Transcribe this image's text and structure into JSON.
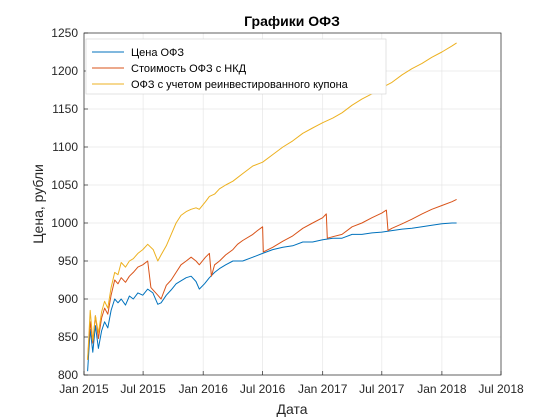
{
  "chart_data": {
    "type": "line",
    "title": "Графики ОФЗ",
    "xlabel": "Дата",
    "ylabel": "Цена, рубли",
    "grid": true,
    "legend_position": "top-left",
    "ylim": [
      800,
      1250
    ],
    "xlim": [
      "2015-01-01",
      "2018-07-01"
    ],
    "x_ticks": [
      {
        "date": "2015-01-01",
        "label": "Jan 2015"
      },
      {
        "date": "2015-07-01",
        "label": "Jul 2015"
      },
      {
        "date": "2016-01-01",
        "label": "Jan 2016"
      },
      {
        "date": "2016-07-01",
        "label": "Jul 2016"
      },
      {
        "date": "2017-01-01",
        "label": "Jan 2017"
      },
      {
        "date": "2017-07-01",
        "label": "Jul 2017"
      },
      {
        "date": "2018-01-01",
        "label": "Jan 2018"
      },
      {
        "date": "2018-07-01",
        "label": "Jul 2018"
      }
    ],
    "y_ticks": [
      800,
      850,
      900,
      950,
      1000,
      1050,
      1100,
      1150,
      1200,
      1250
    ],
    "series": [
      {
        "name": "Цена ОФЗ",
        "color": "#0072BD",
        "points": [
          [
            "2015-01-12",
            805
          ],
          [
            "2015-01-20",
            860
          ],
          [
            "2015-01-28",
            830
          ],
          [
            "2015-02-05",
            865
          ],
          [
            "2015-02-14",
            835
          ],
          [
            "2015-02-24",
            858
          ],
          [
            "2015-03-05",
            870
          ],
          [
            "2015-03-15",
            862
          ],
          [
            "2015-03-25",
            885
          ],
          [
            "2015-04-05",
            900
          ],
          [
            "2015-04-15",
            895
          ],
          [
            "2015-04-25",
            900
          ],
          [
            "2015-05-08",
            892
          ],
          [
            "2015-05-20",
            904
          ],
          [
            "2015-06-01",
            900
          ],
          [
            "2015-06-15",
            908
          ],
          [
            "2015-06-30",
            905
          ],
          [
            "2015-07-15",
            913
          ],
          [
            "2015-07-31",
            908
          ],
          [
            "2015-08-15",
            893
          ],
          [
            "2015-08-25",
            895
          ],
          [
            "2015-09-10",
            905
          ],
          [
            "2015-09-25",
            912
          ],
          [
            "2015-10-10",
            920
          ],
          [
            "2015-10-25",
            924
          ],
          [
            "2015-11-10",
            928
          ],
          [
            "2015-11-25",
            930
          ],
          [
            "2015-12-10",
            923
          ],
          [
            "2015-12-20",
            913
          ],
          [
            "2016-01-05",
            920
          ],
          [
            "2016-01-20",
            928
          ],
          [
            "2016-02-05",
            935
          ],
          [
            "2016-02-20",
            940
          ],
          [
            "2016-03-10",
            945
          ],
          [
            "2016-04-01",
            950
          ],
          [
            "2016-05-01",
            950
          ],
          [
            "2016-06-01",
            955
          ],
          [
            "2016-07-01",
            960
          ],
          [
            "2016-08-01",
            965
          ],
          [
            "2016-09-01",
            968
          ],
          [
            "2016-10-01",
            970
          ],
          [
            "2016-11-01",
            975
          ],
          [
            "2016-12-01",
            975
          ],
          [
            "2017-01-01",
            978
          ],
          [
            "2017-02-01",
            980
          ],
          [
            "2017-03-01",
            980
          ],
          [
            "2017-04-01",
            985
          ],
          [
            "2017-05-01",
            985
          ],
          [
            "2017-06-01",
            987
          ],
          [
            "2017-07-01",
            988
          ],
          [
            "2017-08-01",
            990
          ],
          [
            "2017-09-01",
            992
          ],
          [
            "2017-10-01",
            993
          ],
          [
            "2017-11-01",
            995
          ],
          [
            "2017-12-01",
            997
          ],
          [
            "2018-01-01",
            999
          ],
          [
            "2018-02-01",
            1000
          ],
          [
            "2018-02-15",
            1000
          ]
        ]
      },
      {
        "name": "Стоимость ОФЗ с НКД",
        "color": "#D95319",
        "points": [
          [
            "2015-01-12",
            820
          ],
          [
            "2015-01-20",
            870
          ],
          [
            "2015-01-28",
            842
          ],
          [
            "2015-02-05",
            878
          ],
          [
            "2015-02-14",
            848
          ],
          [
            "2015-02-24",
            875
          ],
          [
            "2015-03-05",
            888
          ],
          [
            "2015-03-15",
            880
          ],
          [
            "2015-03-25",
            905
          ],
          [
            "2015-04-05",
            925
          ],
          [
            "2015-04-15",
            920
          ],
          [
            "2015-04-25",
            928
          ],
          [
            "2015-05-08",
            922
          ],
          [
            "2015-05-20",
            930
          ],
          [
            "2015-06-01",
            935
          ],
          [
            "2015-06-15",
            942
          ],
          [
            "2015-06-30",
            945
          ],
          [
            "2015-07-15",
            950
          ],
          [
            "2015-07-25",
            915
          ],
          [
            "2015-08-15",
            905
          ],
          [
            "2015-08-25",
            900
          ],
          [
            "2015-09-10",
            918
          ],
          [
            "2015-09-25",
            925
          ],
          [
            "2015-10-10",
            935
          ],
          [
            "2015-10-25",
            945
          ],
          [
            "2015-11-10",
            950
          ],
          [
            "2015-11-25",
            955
          ],
          [
            "2015-12-10",
            950
          ],
          [
            "2015-12-20",
            945
          ],
          [
            "2016-01-08",
            955
          ],
          [
            "2016-01-20",
            960
          ],
          [
            "2016-01-26",
            930
          ],
          [
            "2016-02-05",
            945
          ],
          [
            "2016-02-20",
            950
          ],
          [
            "2016-03-10",
            958
          ],
          [
            "2016-04-01",
            965
          ],
          [
            "2016-04-15",
            972
          ],
          [
            "2016-05-01",
            977
          ],
          [
            "2016-06-01",
            985
          ],
          [
            "2016-06-15",
            990
          ],
          [
            "2016-07-01",
            995
          ],
          [
            "2016-07-03",
            962
          ],
          [
            "2016-08-01",
            968
          ],
          [
            "2016-09-01",
            976
          ],
          [
            "2016-10-01",
            983
          ],
          [
            "2016-11-01",
            993
          ],
          [
            "2016-12-01",
            1000
          ],
          [
            "2017-01-01",
            1007
          ],
          [
            "2017-01-12",
            1012
          ],
          [
            "2017-01-15",
            980
          ],
          [
            "2017-02-01",
            982
          ],
          [
            "2017-03-01",
            985
          ],
          [
            "2017-04-01",
            995
          ],
          [
            "2017-05-01",
            1000
          ],
          [
            "2017-06-01",
            1007
          ],
          [
            "2017-07-01",
            1013
          ],
          [
            "2017-07-15",
            1017
          ],
          [
            "2017-07-20",
            990
          ],
          [
            "2017-08-01",
            993
          ],
          [
            "2017-09-01",
            999
          ],
          [
            "2017-10-01",
            1005
          ],
          [
            "2017-11-01",
            1012
          ],
          [
            "2017-12-01",
            1018
          ],
          [
            "2018-01-01",
            1023
          ],
          [
            "2018-02-01",
            1028
          ],
          [
            "2018-02-15",
            1031
          ]
        ]
      },
      {
        "name": "ОФЗ с учетом реинвестированного купона",
        "color": "#EDB120",
        "points": [
          [
            "2015-01-12",
            820
          ],
          [
            "2015-01-20",
            885
          ],
          [
            "2015-01-28",
            845
          ],
          [
            "2015-02-05",
            878
          ],
          [
            "2015-02-14",
            855
          ],
          [
            "2015-02-24",
            883
          ],
          [
            "2015-03-05",
            897
          ],
          [
            "2015-03-15",
            888
          ],
          [
            "2015-03-25",
            915
          ],
          [
            "2015-04-05",
            935
          ],
          [
            "2015-04-15",
            932
          ],
          [
            "2015-04-25",
            948
          ],
          [
            "2015-05-08",
            942
          ],
          [
            "2015-05-20",
            950
          ],
          [
            "2015-06-01",
            953
          ],
          [
            "2015-06-15",
            960
          ],
          [
            "2015-06-30",
            965
          ],
          [
            "2015-07-15",
            972
          ],
          [
            "2015-08-01",
            965
          ],
          [
            "2015-08-15",
            950
          ],
          [
            "2015-08-25",
            958
          ],
          [
            "2015-09-10",
            970
          ],
          [
            "2015-09-25",
            985
          ],
          [
            "2015-10-10",
            1000
          ],
          [
            "2015-10-25",
            1010
          ],
          [
            "2015-11-10",
            1015
          ],
          [
            "2015-11-25",
            1018
          ],
          [
            "2015-12-10",
            1020
          ],
          [
            "2015-12-20",
            1018
          ],
          [
            "2016-01-08",
            1028
          ],
          [
            "2016-01-20",
            1035
          ],
          [
            "2016-02-05",
            1038
          ],
          [
            "2016-02-20",
            1045
          ],
          [
            "2016-03-10",
            1050
          ],
          [
            "2016-04-01",
            1055
          ],
          [
            "2016-05-01",
            1065
          ],
          [
            "2016-06-01",
            1075
          ],
          [
            "2016-07-01",
            1080
          ],
          [
            "2016-08-01",
            1090
          ],
          [
            "2016-09-01",
            1100
          ],
          [
            "2016-10-01",
            1108
          ],
          [
            "2016-11-01",
            1118
          ],
          [
            "2016-12-01",
            1125
          ],
          [
            "2017-01-01",
            1132
          ],
          [
            "2017-02-01",
            1138
          ],
          [
            "2017-03-01",
            1145
          ],
          [
            "2017-04-01",
            1155
          ],
          [
            "2017-05-01",
            1163
          ],
          [
            "2017-06-01",
            1170
          ],
          [
            "2017-07-01",
            1178
          ],
          [
            "2017-08-01",
            1185
          ],
          [
            "2017-09-01",
            1195
          ],
          [
            "2017-10-01",
            1203
          ],
          [
            "2017-11-01",
            1210
          ],
          [
            "2017-12-01",
            1218
          ],
          [
            "2018-01-01",
            1225
          ],
          [
            "2018-02-01",
            1233
          ],
          [
            "2018-02-15",
            1237
          ]
        ]
      }
    ]
  }
}
